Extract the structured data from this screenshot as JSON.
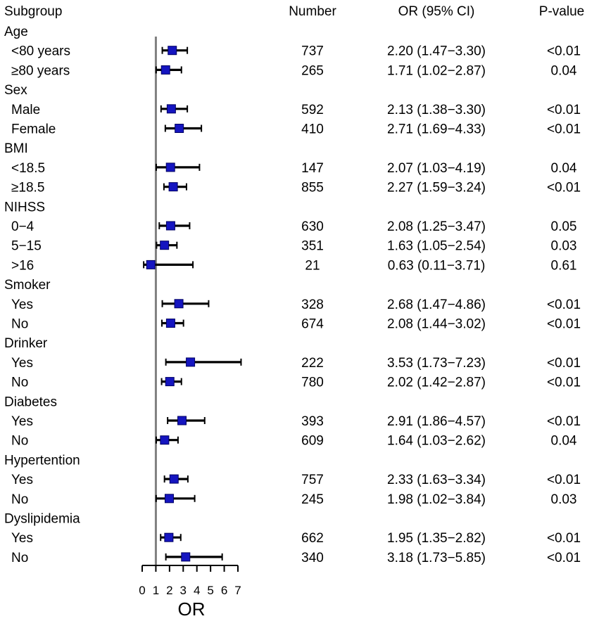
{
  "chart_data": {
    "type": "forest",
    "headers": {
      "subgroup": "Subgroup",
      "number": "Number",
      "or_ci": "OR (95% CI)",
      "pvalue": "P-value"
    },
    "xlabel": "OR",
    "xlim": [
      0,
      7
    ],
    "xticks": [
      "0",
      "1",
      "2",
      "3",
      "4",
      "5",
      "6",
      "7"
    ],
    "reference_line": 1,
    "rows": [
      {
        "type": "header",
        "label": "Age"
      },
      {
        "type": "item",
        "label": "<80 years",
        "n": "737",
        "or_ci": "2.20 (1.47−3.30)",
        "p": "<0.01",
        "or": 2.2,
        "lo": 1.47,
        "hi": 3.3
      },
      {
        "type": "item",
        "label": "≥80 years",
        "n": "265",
        "or_ci": "1.71 (1.02−2.87)",
        "p": "0.04",
        "or": 1.71,
        "lo": 1.02,
        "hi": 2.87
      },
      {
        "type": "header",
        "label": "Sex"
      },
      {
        "type": "item",
        "label": "Male",
        "n": "592",
        "or_ci": "2.13 (1.38−3.30)",
        "p": "<0.01",
        "or": 2.13,
        "lo": 1.38,
        "hi": 3.3
      },
      {
        "type": "item",
        "label": "Female",
        "n": "410",
        "or_ci": "2.71 (1.69−4.33)",
        "p": "<0.01",
        "or": 2.71,
        "lo": 1.69,
        "hi": 4.33
      },
      {
        "type": "header",
        "label": "BMI"
      },
      {
        "type": "item",
        "label": "<18.5",
        "n": "147",
        "or_ci": "2.07 (1.03−4.19)",
        "p": "0.04",
        "or": 2.07,
        "lo": 1.03,
        "hi": 4.19
      },
      {
        "type": "item",
        "label": "≥18.5",
        "n": "855",
        "or_ci": "2.27 (1.59−3.24)",
        "p": "<0.01",
        "or": 2.27,
        "lo": 1.59,
        "hi": 3.24
      },
      {
        "type": "header",
        "label": "NIHSS"
      },
      {
        "type": "item",
        "label": "0−4",
        "n": "630",
        "or_ci": "2.08 (1.25−3.47)",
        "p": "0.05",
        "or": 2.08,
        "lo": 1.25,
        "hi": 3.47
      },
      {
        "type": "item",
        "label": "5−15",
        "n": "351",
        "or_ci": "1.63 (1.05−2.54)",
        "p": "0.03",
        "or": 1.63,
        "lo": 1.05,
        "hi": 2.54
      },
      {
        "type": "item",
        "label": ">16",
        "n": "21",
        "or_ci": "0.63 (0.11−3.71)",
        "p": "0.61",
        "or": 0.63,
        "lo": 0.11,
        "hi": 3.71
      },
      {
        "type": "header",
        "label": "Smoker"
      },
      {
        "type": "item",
        "label": "Yes",
        "n": "328",
        "or_ci": "2.68 (1.47−4.86)",
        "p": "<0.01",
        "or": 2.68,
        "lo": 1.47,
        "hi": 4.86
      },
      {
        "type": "item",
        "label": "No",
        "n": "674",
        "or_ci": "2.08 (1.44−3.02)",
        "p": "<0.01",
        "or": 2.08,
        "lo": 1.44,
        "hi": 3.02
      },
      {
        "type": "header",
        "label": "Drinker"
      },
      {
        "type": "item",
        "label": "Yes",
        "n": "222",
        "or_ci": "3.53 (1.73−7.23)",
        "p": "<0.01",
        "or": 3.53,
        "lo": 1.73,
        "hi": 7.23
      },
      {
        "type": "item",
        "label": "No",
        "n": "780",
        "or_ci": "2.02 (1.42−2.87)",
        "p": "<0.01",
        "or": 2.02,
        "lo": 1.42,
        "hi": 2.87
      },
      {
        "type": "header",
        "label": "Diabetes"
      },
      {
        "type": "item",
        "label": "Yes",
        "n": "393",
        "or_ci": "2.91 (1.86−4.57)",
        "p": "<0.01",
        "or": 2.91,
        "lo": 1.86,
        "hi": 4.57
      },
      {
        "type": "item",
        "label": "No",
        "n": "609",
        "or_ci": "1.64 (1.03−2.62)",
        "p": "0.04",
        "or": 1.64,
        "lo": 1.03,
        "hi": 2.62
      },
      {
        "type": "header",
        "label": "Hypertention"
      },
      {
        "type": "item",
        "label": "Yes",
        "n": "757",
        "or_ci": "2.33 (1.63−3.34)",
        "p": "<0.01",
        "or": 2.33,
        "lo": 1.63,
        "hi": 3.34
      },
      {
        "type": "item",
        "label": "No",
        "n": "245",
        "or_ci": "1.98 (1.02−3.84)",
        "p": "0.03",
        "or": 1.98,
        "lo": 1.02,
        "hi": 3.84
      },
      {
        "type": "header",
        "label": "Dyslipidemia"
      },
      {
        "type": "item",
        "label": "Yes",
        "n": "662",
        "or_ci": "1.95 (1.35−2.82)",
        "p": "<0.01",
        "or": 1.95,
        "lo": 1.35,
        "hi": 2.82
      },
      {
        "type": "item",
        "label": "No",
        "n": "340",
        "or_ci": "3.18 (1.73−5.85)",
        "p": "<0.01",
        "or": 3.18,
        "lo": 1.73,
        "hi": 5.85
      }
    ],
    "colors": {
      "marker": "#1515c0",
      "marker_edge": "#000060",
      "ci_line": "#000000",
      "reference_line": "#808080"
    }
  }
}
